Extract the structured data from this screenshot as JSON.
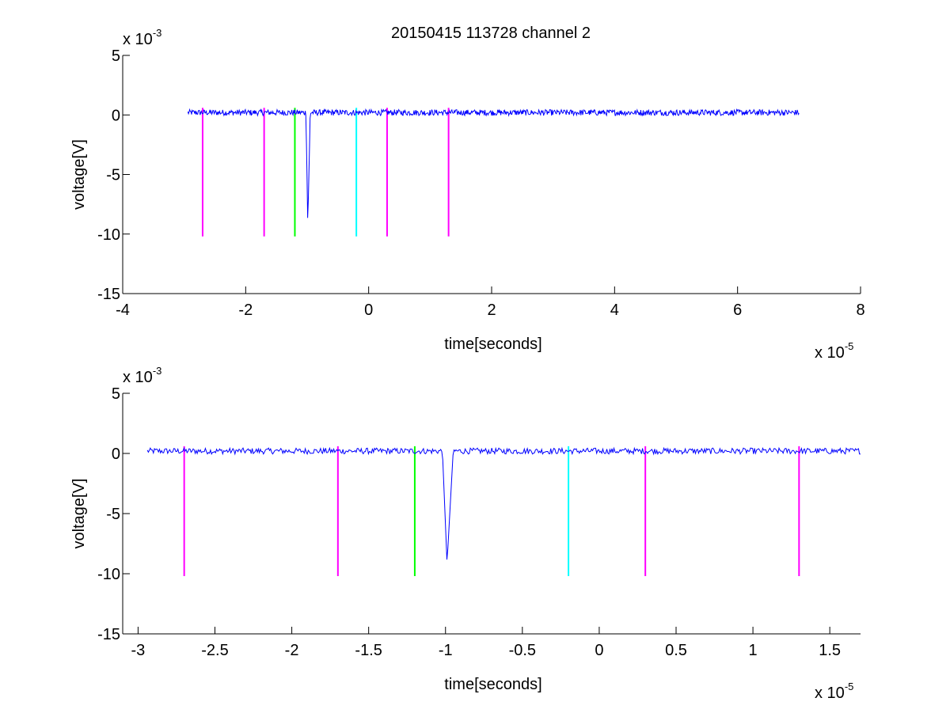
{
  "figure": {
    "title": "20150415 113728 channel 2"
  },
  "chart_data": [
    {
      "type": "line",
      "xlabel": "time[seconds]",
      "ylabel": "voltage[V]",
      "x_multiplier": {
        "base": "x 10",
        "exponent": "-5"
      },
      "y_multiplier": {
        "base": "x 10",
        "exponent": "-3"
      },
      "xlim": [
        -4,
        8
      ],
      "ylim": [
        -15,
        5
      ],
      "xticks": [
        -4,
        -2,
        0,
        2,
        4,
        6,
        8
      ],
      "xtick_labels": [
        "-4",
        "-2",
        "0",
        "2",
        "4",
        "6",
        "8"
      ],
      "yticks": [
        5,
        0,
        -5,
        -10,
        -15
      ],
      "ytick_labels": [
        "5",
        "0",
        "-5",
        "-10",
        "-15"
      ],
      "grid": false,
      "series": [
        {
          "color": "#0000ff",
          "x_range": [
            -2.94,
            7.0
          ],
          "baseline": 0.2,
          "noise_amplitude": 0.25,
          "pulse": {
            "start": -1.02,
            "min_time": -0.99,
            "min_value": -9.2,
            "end": -0.95
          },
          "points": 1000
        }
      ],
      "markers": [
        {
          "x": -2.7,
          "y_top": 0.6,
          "y_bottom": -10.2,
          "color": "#ff00ff"
        },
        {
          "x": -1.7,
          "y_top": 0.6,
          "y_bottom": -10.2,
          "color": "#ff00ff"
        },
        {
          "x": -1.2,
          "y_top": 0.6,
          "y_bottom": -10.2,
          "color": "#00ff00"
        },
        {
          "x": -0.2,
          "y_top": 0.6,
          "y_bottom": -10.2,
          "color": "#00ffff"
        },
        {
          "x": 0.3,
          "y_top": 0.6,
          "y_bottom": -10.2,
          "color": "#ff00ff"
        },
        {
          "x": 1.3,
          "y_top": 0.6,
          "y_bottom": -10.2,
          "color": "#ff00ff"
        }
      ]
    },
    {
      "type": "line",
      "xlabel": "time[seconds]",
      "ylabel": "voltage[V]",
      "x_multiplier": {
        "base": "x 10",
        "exponent": "-5"
      },
      "y_multiplier": {
        "base": "x 10",
        "exponent": "-3"
      },
      "xlim": [
        -3.1,
        1.7
      ],
      "ylim": [
        -15,
        5
      ],
      "xticks": [
        -3,
        -2.5,
        -2,
        -1.5,
        -1,
        -0.5,
        0,
        0.5,
        1,
        1.5
      ],
      "xtick_labels": [
        "-3",
        "-2.5",
        "-2",
        "-1.5",
        "-1",
        "-0.5",
        "0",
        "0.5",
        "1",
        "1.5"
      ],
      "yticks": [
        5,
        0,
        -5,
        -10,
        -15
      ],
      "ytick_labels": [
        "5",
        "0",
        "-5",
        "-10",
        "-15"
      ],
      "grid": false,
      "series": [
        {
          "color": "#0000ff",
          "x_range": [
            -2.94,
            1.7
          ],
          "baseline": 0.2,
          "noise_amplitude": 0.25,
          "pulse": {
            "start": -1.02,
            "min_time": -0.99,
            "min_value": -9.2,
            "end": -0.95
          },
          "points": 700
        }
      ],
      "markers": [
        {
          "x": -2.7,
          "y_top": 0.6,
          "y_bottom": -10.2,
          "color": "#ff00ff"
        },
        {
          "x": -1.7,
          "y_top": 0.6,
          "y_bottom": -10.2,
          "color": "#ff00ff"
        },
        {
          "x": -1.2,
          "y_top": 0.6,
          "y_bottom": -10.2,
          "color": "#00ff00"
        },
        {
          "x": -0.2,
          "y_top": 0.6,
          "y_bottom": -10.2,
          "color": "#00ffff"
        },
        {
          "x": 0.3,
          "y_top": 0.6,
          "y_bottom": -10.2,
          "color": "#ff00ff"
        },
        {
          "x": 1.3,
          "y_top": 0.6,
          "y_bottom": -10.2,
          "color": "#ff00ff"
        }
      ]
    }
  ]
}
